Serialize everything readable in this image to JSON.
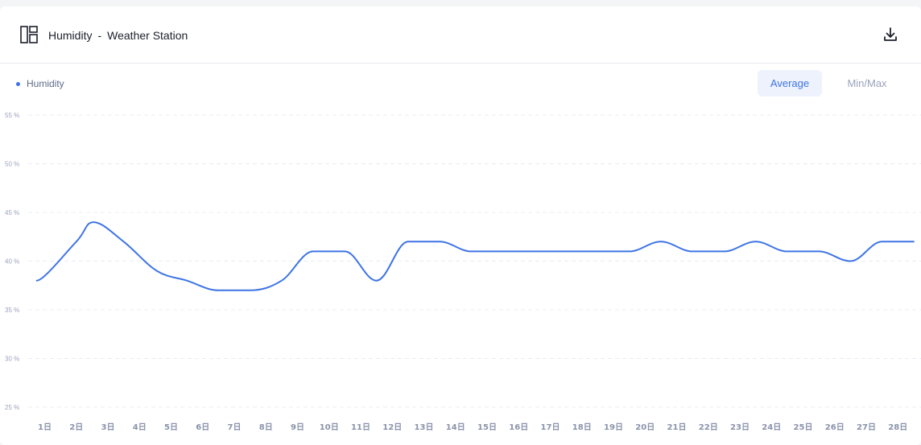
{
  "header": {
    "title": "Humidity",
    "separator": "-",
    "station": "Weather Station",
    "widget_icon": "layout-icon",
    "download_icon": "download-icon"
  },
  "legend": {
    "label": "Humidity",
    "color": "#3e74e6"
  },
  "toggles": {
    "average": "Average",
    "minmax": "Min/Max",
    "selected": "Average"
  },
  "chart_data": {
    "type": "line",
    "title": "Humidity",
    "xlabel": "",
    "ylabel": "",
    "ylim": [
      25,
      55
    ],
    "yticks": [
      {
        "value": 55,
        "label": "55 %"
      },
      {
        "value": 50,
        "label": "50 %"
      },
      {
        "value": 45,
        "label": "45 %"
      },
      {
        "value": 40,
        "label": "40 %"
      },
      {
        "value": 35,
        "label": "35 %"
      },
      {
        "value": 30,
        "label": "30 %"
      },
      {
        "value": 25,
        "label": "25 %"
      }
    ],
    "categories": [
      "1日",
      "2日",
      "3日",
      "4日",
      "5日",
      "6日",
      "7日",
      "8日",
      "9日",
      "10日",
      "11日",
      "12日",
      "13日",
      "14日",
      "15日",
      "16日",
      "17日",
      "18日",
      "19日",
      "20日",
      "21日",
      "22日",
      "23日",
      "24日",
      "25日",
      "26日",
      "27日",
      "28日"
    ],
    "grid": true,
    "grid_style": "dashed",
    "legend_position": "top-left",
    "series": [
      {
        "name": "Humidity",
        "color": "#3e74e6",
        "points": [
          {
            "x": 0.75,
            "y": 38
          },
          {
            "x": 2,
            "y": 42
          },
          {
            "x": 2.55,
            "y": 44
          },
          {
            "x": 3.5,
            "y": 42
          },
          {
            "x": 4.55,
            "y": 39
          },
          {
            "x": 5.5,
            "y": 38
          },
          {
            "x": 6.5,
            "y": 37
          },
          {
            "x": 7.5,
            "y": 37
          },
          {
            "x": 8.5,
            "y": 38
          },
          {
            "x": 9.5,
            "y": 41
          },
          {
            "x": 10.5,
            "y": 41
          },
          {
            "x": 11.5,
            "y": 38
          },
          {
            "x": 12.5,
            "y": 42
          },
          {
            "x": 13.5,
            "y": 42
          },
          {
            "x": 14.5,
            "y": 41
          },
          {
            "x": 15.5,
            "y": 41
          },
          {
            "x": 16.5,
            "y": 41
          },
          {
            "x": 17.5,
            "y": 41
          },
          {
            "x": 18.5,
            "y": 41
          },
          {
            "x": 19.5,
            "y": 41
          },
          {
            "x": 20.5,
            "y": 42
          },
          {
            "x": 21.5,
            "y": 41
          },
          {
            "x": 22.5,
            "y": 41
          },
          {
            "x": 23.5,
            "y": 42
          },
          {
            "x": 24.5,
            "y": 41
          },
          {
            "x": 25.5,
            "y": 41
          },
          {
            "x": 26.5,
            "y": 40
          },
          {
            "x": 27.5,
            "y": 42
          },
          {
            "x": 28.5,
            "y": 42
          }
        ]
      }
    ]
  }
}
